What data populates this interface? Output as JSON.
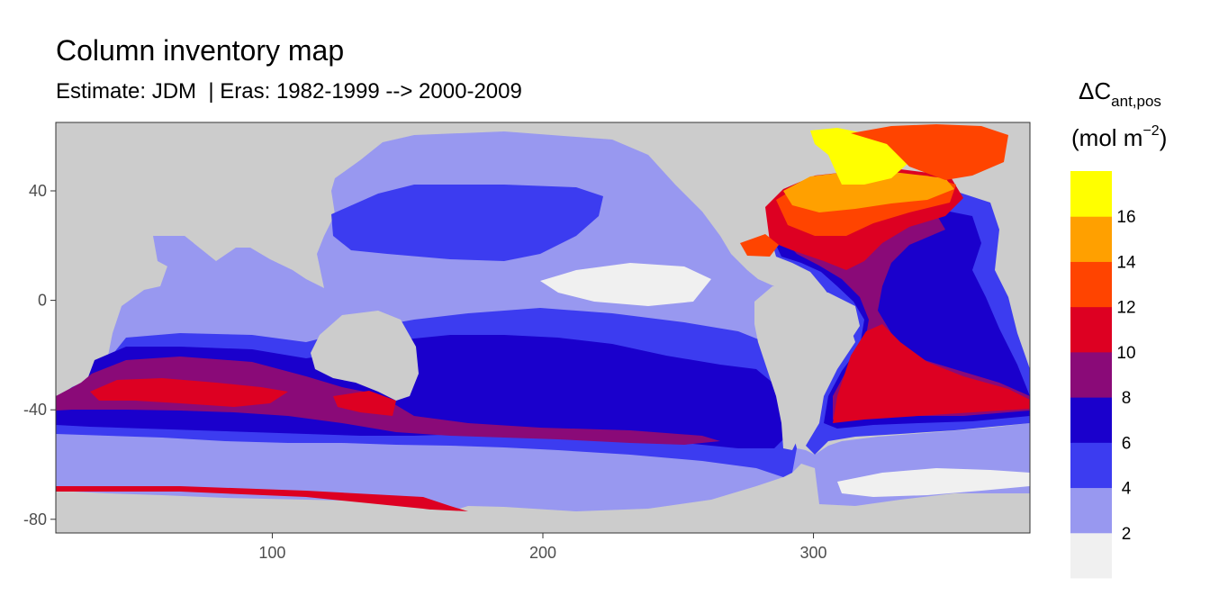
{
  "title": "Column inventory map",
  "subtitle": "Estimate: JDM  | Eras: 1982-1999 --> 2000-2009",
  "legend": {
    "symbol": "ΔC",
    "subscript": "ant,pos",
    "units_prefix": "(mol m",
    "units_exponent": "−2",
    "units_suffix": ")"
  },
  "chart_data": {
    "type": "heatmap",
    "x_ticks": [
      100,
      200,
      300
    ],
    "y_ticks": [
      40,
      0,
      -40,
      -80
    ],
    "xlim": [
      20,
      380
    ],
    "ylim": [
      -85,
      65
    ],
    "land_color": "#cccccc",
    "legend_breaks": [
      "2",
      "4",
      "6",
      "8",
      "10",
      "12",
      "14",
      "16"
    ],
    "legend_colors": [
      "#f0f0f0",
      "#9898f0",
      "#3c3cf0",
      "#1a00cc",
      "#8a0a78",
      "#dd0022",
      "#ff4400",
      "#ffa000",
      "#ffff00"
    ],
    "regions": [
      {
        "name": "ocean-base",
        "color": "#9898f0",
        "value_class": "2-4"
      },
      {
        "name": "north-pacific-gyre",
        "color": "#3c3cf0",
        "value_class": "4-6"
      },
      {
        "name": "south-pacific-gyre",
        "color": "#3c3cf0",
        "value_class": "4-6"
      },
      {
        "name": "south-pacific-core",
        "color": "#1a00cc",
        "value_class": "6-8"
      },
      {
        "name": "southern-indian-band",
        "color": "#1a00cc",
        "value_class": "6-8"
      },
      {
        "name": "southern-indian-deep",
        "color": "#8a0a78",
        "value_class": "8-10"
      },
      {
        "name": "southern-indian-max",
        "color": "#dd0022",
        "value_class": "10-12"
      },
      {
        "name": "equatorial-pacific-min",
        "color": "#f0f0f0",
        "value_class": "0-2"
      },
      {
        "name": "north-atlantic-high",
        "color": "#ff4400",
        "value_class": "12-14"
      },
      {
        "name": "north-atlantic-peak",
        "color": "#ffa000",
        "value_class": "14-16"
      },
      {
        "name": "labrador-max",
        "color": "#ffff00",
        "value_class": ">16"
      },
      {
        "name": "south-atlantic-high",
        "color": "#dd0022",
        "value_class": "10-12"
      }
    ]
  }
}
